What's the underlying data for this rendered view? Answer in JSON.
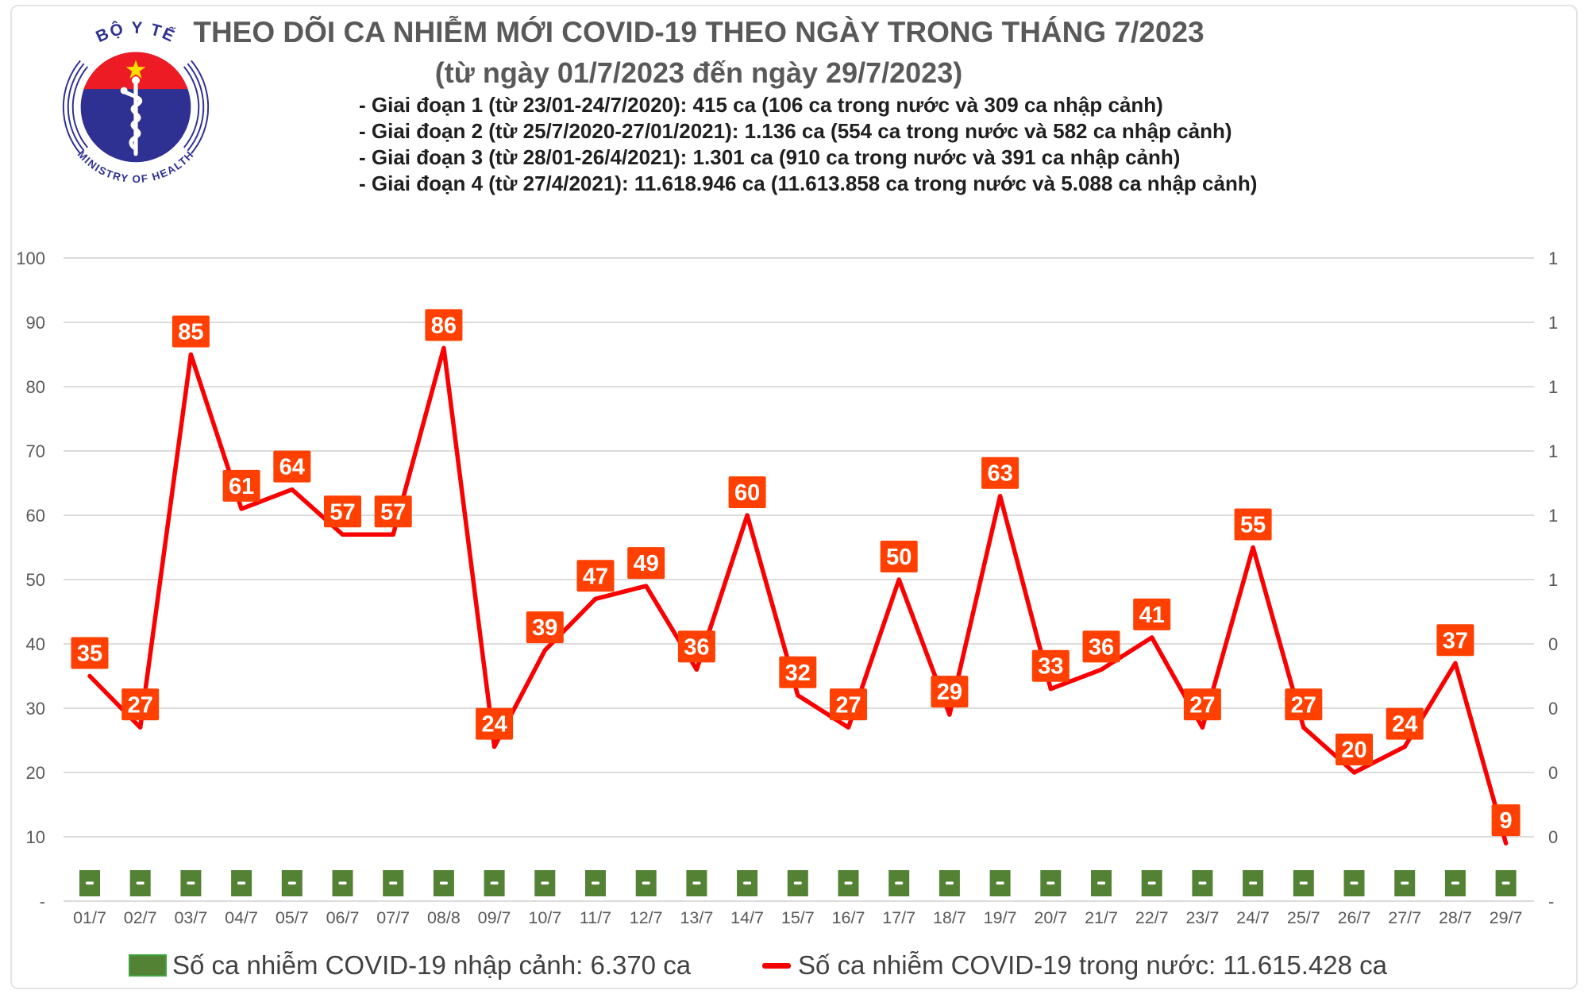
{
  "logo": {
    "top_text": "BỘ Y TẾ",
    "bottom_text": "MINISTRY OF HEALTH"
  },
  "header": {
    "title": "THEO DÕI CA NHIỄM MỚI COVID-19 THEO NGÀY TRONG THÁNG 7/2023",
    "subtitle": "(từ ngày 01/7/2023 đến ngày 29/7/2023)",
    "phases": [
      "- Giai đoạn 1 (từ 23/01-24/7/2020): 415 ca (106 ca trong nước và 309 ca nhập cảnh)",
      "- Giai đoạn 2 (từ 25/7/2020-27/01/2021): 1.136 ca (554 ca trong nước và 582 ca nhập cảnh)",
      "- Giai đoạn 3 (từ 28/01-26/4/2021): 1.301 ca (910 ca trong nước và 391 ca nhập cảnh)",
      "- Giai đoạn 4 (từ 27/4/2021): 11.618.946 ca (11.613.858 ca trong nước và 5.088 ca nhập cảnh)"
    ]
  },
  "chart_data": {
    "type": "line",
    "title": "THEO DÕI CA NHIỄM MỚI COVID-19 THEO NGÀY TRONG THÁNG 7/2023",
    "xlabel": "",
    "ylabel": "",
    "ylim": [
      0,
      100
    ],
    "grid": true,
    "categories": [
      "01/7",
      "02/7",
      "03/7",
      "04/7",
      "05/7",
      "06/7",
      "07/7",
      "08/8",
      "09/7",
      "10/7",
      "11/7",
      "12/7",
      "13/7",
      "14/7",
      "15/7",
      "16/7",
      "17/7",
      "18/7",
      "19/7",
      "20/7",
      "21/7",
      "22/7",
      "23/7",
      "24/7",
      "25/7",
      "26/7",
      "27/7",
      "28/7",
      "29/7"
    ],
    "yticks_left": [
      "100",
      "90",
      "80",
      "70",
      "60",
      "50",
      "40",
      "30",
      "20",
      "10",
      "-"
    ],
    "yticks_right": [
      "1",
      "1",
      "1",
      "1",
      "1",
      "1",
      "0",
      "0",
      "0",
      "0",
      "-"
    ],
    "series": [
      {
        "name": "Số ca nhiễm COVID-19 trong nước",
        "type": "line",
        "color": "#fb0000",
        "label_bg": "#ff4000",
        "label_color": "#ffffff",
        "values": [
          35,
          27,
          85,
          61,
          64,
          57,
          57,
          86,
          24,
          39,
          47,
          49,
          36,
          60,
          32,
          27,
          50,
          29,
          63,
          33,
          36,
          41,
          27,
          55,
          27,
          20,
          24,
          37,
          9
        ]
      },
      {
        "name": "Số ca nhiễm COVID-19 nhập cảnh",
        "type": "bar",
        "color": "#548235",
        "data_label": "-",
        "values": [
          0,
          0,
          0,
          0,
          0,
          0,
          0,
          0,
          0,
          0,
          0,
          0,
          0,
          0,
          0,
          0,
          0,
          0,
          0,
          0,
          0,
          0,
          0,
          0,
          0,
          0,
          0,
          0,
          0
        ]
      }
    ]
  },
  "legend": {
    "items": [
      {
        "label": "Số ca nhiễm COVID-19 nhập cảnh: 6.370 ca",
        "swatch": "bar",
        "color": "#548235"
      },
      {
        "label": "Số ca nhiễm COVID-19 trong nước: 11.615.428 ca",
        "swatch": "line",
        "color": "#f50000"
      }
    ]
  }
}
